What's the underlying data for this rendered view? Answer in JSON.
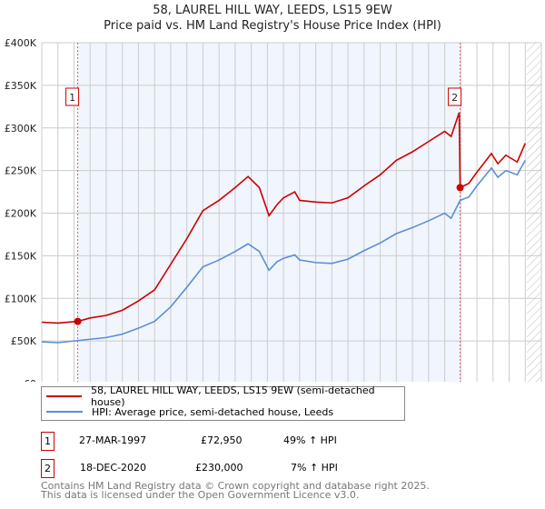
{
  "chart_data": {
    "type": "line",
    "title": "58, LAUREL HILL WAY, LEEDS, LS15 9EW",
    "subtitle": "Price paid vs. HM Land Registry's House Price Index (HPI)",
    "xlim": [
      1995,
      2026
    ],
    "ylim": [
      0,
      400000
    ],
    "x_ticks": [
      "1995",
      "1996",
      "1997",
      "1998",
      "1999",
      "2000",
      "2001",
      "2002",
      "2003",
      "2004",
      "2005",
      "2006",
      "2007",
      "2008",
      "2009",
      "2010",
      "2011",
      "2012",
      "2013",
      "2014",
      "2015",
      "2016",
      "2017",
      "2018",
      "2019",
      "2020",
      "2021",
      "2022",
      "2023",
      "2024",
      "2025",
      "2026"
    ],
    "y_ticks": [
      {
        "v": 0,
        "l": "£0"
      },
      {
        "v": 50000,
        "l": "£50K"
      },
      {
        "v": 100000,
        "l": "£100K"
      },
      {
        "v": 150000,
        "l": "£150K"
      },
      {
        "v": 200000,
        "l": "£200K"
      },
      {
        "v": 250000,
        "l": "£250K"
      },
      {
        "v": 300000,
        "l": "£300K"
      },
      {
        "v": 350000,
        "l": "£350K"
      },
      {
        "v": 400000,
        "l": "£400K"
      }
    ],
    "grid": true,
    "shaded_range": [
      1997.23,
      2020.96
    ],
    "forecast_from": 2025.1,
    "series": [
      {
        "name": "58, LAUREL HILL WAY, LEEDS, LS15 9EW (semi-detached house)",
        "color": "#cc0000",
        "x": [
          1995,
          1996,
          1997.23,
          1998,
          1999,
          2000,
          2001,
          2002,
          2003,
          2004,
          2005,
          2006,
          2007,
          2007.8,
          2008.5,
          2009.1,
          2009.6,
          2010,
          2010.7,
          2011,
          2012,
          2013,
          2014,
          2015,
          2016,
          2017,
          2018,
          2019,
          2020,
          2020.4,
          2020.9,
          2020.96,
          2021.5,
          2022,
          2022.9,
          2023.3,
          2023.8,
          2024.5,
          2025
        ],
        "y": [
          72000,
          71000,
          72950,
          77000,
          80000,
          86000,
          97000,
          110000,
          140000,
          170000,
          203000,
          215000,
          230000,
          243000,
          230000,
          197000,
          210000,
          218000,
          225000,
          215000,
          213000,
          212000,
          218000,
          232000,
          245000,
          262000,
          272000,
          284000,
          296000,
          290000,
          318000,
          230000,
          235000,
          248000,
          270000,
          258000,
          268000,
          260000,
          282000
        ]
      },
      {
        "name": "HPI: Average price, semi-detached house, Leeds",
        "color": "#5b8fd4",
        "x": [
          1995,
          1996,
          1997,
          1998,
          1999,
          2000,
          2001,
          2002,
          2003,
          2004,
          2005,
          2006,
          2007,
          2007.8,
          2008.5,
          2009.1,
          2009.6,
          2010,
          2010.7,
          2011,
          2012,
          2013,
          2014,
          2015,
          2016,
          2017,
          2018,
          2019,
          2020,
          2020.4,
          2020.96,
          2021.5,
          2022,
          2022.9,
          2023.3,
          2023.8,
          2024.5,
          2025
        ],
        "y": [
          49000,
          48000,
          50000,
          52000,
          54000,
          58000,
          65000,
          73000,
          90000,
          113000,
          137000,
          145000,
          155000,
          164000,
          155000,
          133000,
          143000,
          147000,
          151000,
          145000,
          142000,
          141000,
          146000,
          156000,
          165000,
          176000,
          183000,
          191000,
          200000,
          194000,
          215000,
          219000,
          232000,
          253000,
          242000,
          250000,
          245000,
          262000
        ]
      }
    ],
    "markers": [
      {
        "label": "1",
        "x": 1997.23,
        "y": 72950
      },
      {
        "label": "2",
        "x": 2020.96,
        "y": 230000
      }
    ]
  },
  "legend": {
    "property": "58, LAUREL HILL WAY, LEEDS, LS15 9EW (semi-detached house)",
    "hpi": "HPI: Average price, semi-detached house, Leeds"
  },
  "transactions": [
    {
      "num": "1",
      "date": "27-MAR-1997",
      "price": "£72,950",
      "hpi": "49% ↑ HPI"
    },
    {
      "num": "2",
      "date": "18-DEC-2020",
      "price": "£230,000",
      "hpi": "7% ↑ HPI"
    }
  ],
  "footer": {
    "line1": "Contains HM Land Registry data © Crown copyright and database right 2025.",
    "line2": "This data is licensed under the Open Government Licence v3.0."
  }
}
